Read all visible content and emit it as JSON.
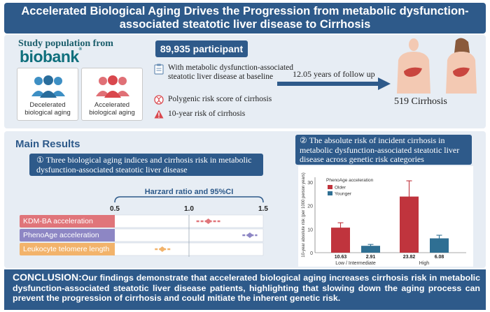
{
  "title": "Accelerated Biological Aging Drives the Progression from metabolic dysfunction-associated steatotic liver disease to Cirrhosis",
  "study": {
    "label": "Study population from",
    "logo_text": "biobank",
    "logo_mark": "®",
    "groups": [
      {
        "label": "Decelerated biological aging",
        "color": "#3d8fc4"
      },
      {
        "label": "Accelerated biological aging",
        "color": "#d9474d"
      }
    ],
    "participants": "89,935 participant",
    "criteria": [
      {
        "text": "With metabolic dysfunction-associated steatotic liver disease at baseline",
        "icon": "clipboard-icon"
      },
      {
        "text": "Polygenic risk score of cirrhosis",
        "icon": "dna-icon"
      },
      {
        "text": "10-year risk of cirrhosis",
        "icon": "warning-icon"
      }
    ],
    "follow_up": "12.05 years of follow up",
    "outcome": "519 Cirrhosis"
  },
  "results": {
    "heading": "Main Results",
    "section1": {
      "number": "①",
      "title": "Three biological aging indices and cirrhosis risk in metabolic dysfunction-associated steatotic liver disease"
    },
    "section2": {
      "number": "②",
      "title": "The absolute risk of incident cirrhosis in metabolic dysfunction-associated steatotic liver disease across genetic risk categories"
    }
  },
  "chart_data": [
    {
      "type": "forest",
      "title": "Harzard ratio and 95%CI",
      "xlim": [
        0.5,
        1.5
      ],
      "ticks": [
        "0.5",
        "1.0",
        "1.5"
      ],
      "rows": [
        {
          "label": "KDM-BA acceleration",
          "hr": 1.13,
          "lo": 1.05,
          "hi": 1.21,
          "color": "#e0757a"
        },
        {
          "label": "PhenoAge acceleration",
          "hr": 1.41,
          "lo": 1.36,
          "hi": 1.46,
          "color": "#8d86c4"
        },
        {
          "label": "Leukocyte telomere length",
          "hr": 0.82,
          "lo": 0.77,
          "hi": 0.88,
          "color": "#f2b36b"
        }
      ]
    },
    {
      "type": "bar",
      "ylabel": "10-year absolute risk (per 1000 person years)",
      "ylim": [
        0,
        32
      ],
      "legend_title": "PhenoAge acceleration",
      "categories": [
        "Low / Intermediate",
        "High"
      ],
      "series": [
        {
          "name": "Older",
          "color": "#c0343d",
          "values": [
            10.63,
            23.82
          ],
          "lo": [
            8.6,
            17.5
          ],
          "hi": [
            12.7,
            30.5
          ]
        },
        {
          "name": "Younger",
          "color": "#2f6f93",
          "values": [
            2.91,
            6.08
          ],
          "lo": [
            2.3,
            4.8
          ],
          "hi": [
            3.5,
            7.4
          ]
        }
      ],
      "value_labels": [
        "10.63",
        "2.91",
        "23.82",
        "6.08"
      ]
    }
  ],
  "conclusion": {
    "head": "CONCLUSION:",
    "text": "Our findings demonstrate that accelerated biological aging increases cirrhosis risk in metabolic dysfunction-associated steatotic liver disease patients, highlighting that slowing down the aging process can prevent the progression of cirrhosis and could mitiate the inherent genetic risk."
  }
}
